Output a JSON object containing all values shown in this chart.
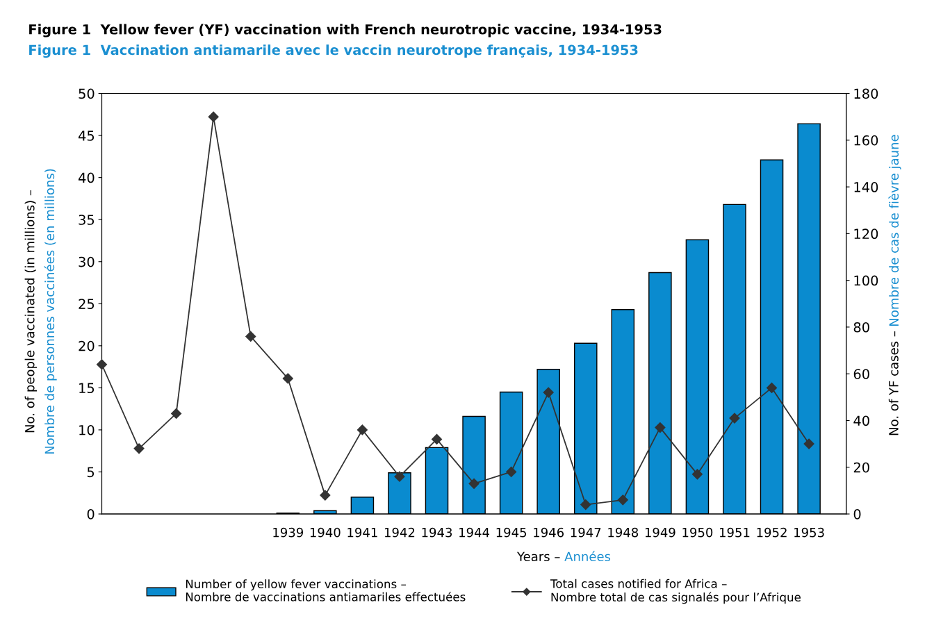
{
  "chart_data": {
    "type": "bar",
    "title": "Figure 1  Yellow fever (YF) vaccination with French neurotropic vaccine, 1934-1953",
    "subtitle": "Figure 1  Vaccination antiamarile avec le vaccin neurotrope français, 1934-1953",
    "xlabel": "Years – Années",
    "ylabel": "No. of people vaccinated (in millions) – Nombre de personnes vaccinées (en millions)",
    "y2label": "No. of YF cases – Nombre de cas de fièvre jaune",
    "categories": [
      null,
      null,
      null,
      null,
      null,
      "1939",
      "1940",
      "1941",
      "1942",
      "1943",
      "1944",
      "1945",
      "1946",
      "1947",
      "1948",
      "1949",
      "1950",
      "1951",
      "1952",
      "1953"
    ],
    "series": [
      {
        "name": "Number of yellow fever vaccinations – Nombre de vaccinations antiamariles effectuées",
        "color": "#0a8bcf",
        "values": [
          null,
          null,
          null,
          null,
          null,
          0.1,
          0.4,
          2.0,
          4.9,
          7.9,
          11.6,
          14.5,
          17.2,
          20.3,
          24.3,
          28.7,
          32.6,
          36.8,
          42.1,
          46.4
        ]
      },
      {
        "name": "Total cases notified for Africa – Nombre total de cas signalés pour l’Afrique",
        "type": "line",
        "axis": "y2",
        "color": "#333333",
        "marker": "diamond",
        "line_style": "solid",
        "values": [
          64,
          28,
          43,
          170,
          76,
          58,
          8,
          36,
          16,
          32,
          13,
          18,
          52,
          4,
          6,
          37,
          17,
          41,
          54,
          30
        ]
      }
    ],
    "ylim": [
      0,
      50
    ],
    "yticks": [
      0,
      5,
      10,
      15,
      20,
      25,
      30,
      35,
      40,
      45,
      50
    ],
    "y2lim": [
      0,
      180
    ],
    "y2ticks": [
      0,
      20,
      40,
      60,
      80,
      100,
      120,
      140,
      160,
      180
    ],
    "grid": false,
    "legend": "bottom"
  }
}
